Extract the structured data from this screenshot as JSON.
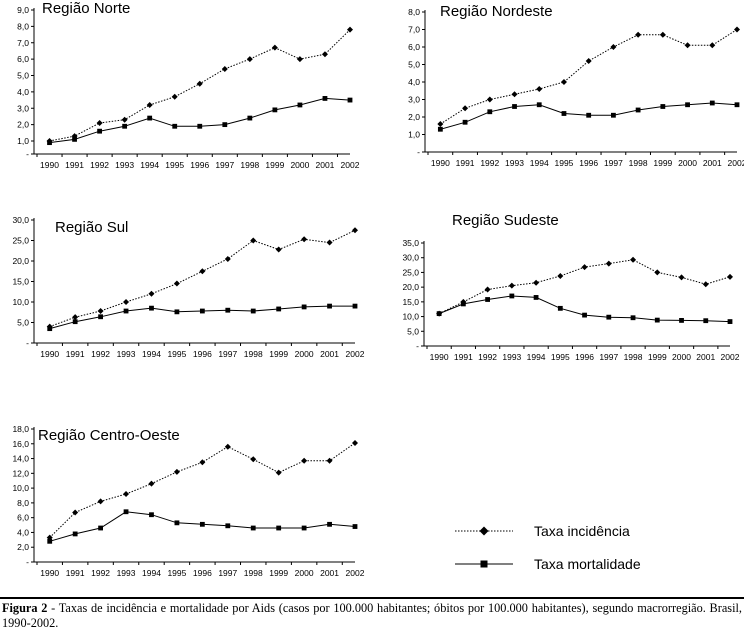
{
  "caption": {
    "label": "Figura 2",
    "text": " - Taxas de incidência e mortalidade por Aids (casos por 100.000 habitantes; óbitos por 100.000 habitantes), segundo macrorregião. Brasil, 1990-2002."
  },
  "legend": {
    "incidence": "Taxa incidência",
    "mortality": "Taxa mortalidade"
  },
  "chart_data": [
    {
      "type": "line",
      "title": "Região Norte",
      "x": [
        "1990",
        "1991",
        "1992",
        "1993",
        "1994",
        "1995",
        "1996",
        "1997",
        "1998",
        "1999",
        "2000",
        "2001",
        "2002"
      ],
      "ylim": [
        1.0,
        9.0
      ],
      "yticks": [
        "1,0",
        "2,0",
        "3,0",
        "4,0",
        "5,0",
        "6,0",
        "7,0",
        "8,0",
        "9,0"
      ],
      "ytick_values": [
        1,
        2,
        3,
        4,
        5,
        6,
        7,
        8,
        9
      ],
      "show_dash": true,
      "series": [
        {
          "name": "Taxa incidência",
          "values": [
            1.0,
            1.3,
            2.1,
            2.3,
            3.2,
            3.7,
            4.5,
            5.4,
            6.0,
            6.7,
            6.0,
            6.3,
            7.8
          ]
        },
        {
          "name": "Taxa mortalidade",
          "values": [
            0.9,
            1.1,
            1.6,
            1.9,
            2.4,
            1.9,
            1.9,
            2.0,
            2.4,
            2.9,
            3.2,
            3.6,
            3.5
          ]
        }
      ]
    },
    {
      "type": "line",
      "title": "Região Nordeste",
      "x": [
        "1990",
        "1991",
        "1992",
        "1993",
        "1994",
        "1995",
        "1996",
        "1997",
        "1998",
        "1999",
        "2000",
        "2001",
        "2002"
      ],
      "ylim": [
        0,
        8.0
      ],
      "yticks": [
        "-",
        "1,0",
        "2,0",
        "3,0",
        "4,0",
        "5,0",
        "6,0",
        "7,0",
        "8,0"
      ],
      "ytick_values": [
        0,
        1,
        2,
        3,
        4,
        5,
        6,
        7,
        8
      ],
      "show_dash": false,
      "series": [
        {
          "name": "Taxa incidência",
          "values": [
            1.6,
            2.5,
            3.0,
            3.3,
            3.6,
            4.0,
            5.2,
            6.0,
            6.7,
            6.7,
            6.1,
            6.1,
            7.0
          ]
        },
        {
          "name": "Taxa mortalidade",
          "values": [
            1.3,
            1.7,
            2.3,
            2.6,
            2.7,
            2.2,
            2.1,
            2.1,
            2.4,
            2.6,
            2.7,
            2.8,
            2.7
          ]
        }
      ]
    },
    {
      "type": "line",
      "title": "Região Sul",
      "x": [
        "1990",
        "1991",
        "1992",
        "1993",
        "1994",
        "1995",
        "1996",
        "1997",
        "1998",
        "1999",
        "2000",
        "2001",
        "2002"
      ],
      "ylim": [
        0,
        30.0
      ],
      "yticks": [
        "-",
        "5,0",
        "10,0",
        "15,0",
        "20,0",
        "25,0",
        "30,0"
      ],
      "ytick_values": [
        0,
        5,
        10,
        15,
        20,
        25,
        30
      ],
      "show_dash": false,
      "series": [
        {
          "name": "Taxa incidência",
          "values": [
            4.0,
            6.3,
            7.8,
            10.0,
            12.0,
            14.5,
            17.5,
            20.5,
            25.0,
            22.8,
            25.3,
            24.5,
            27.5
          ]
        },
        {
          "name": "Taxa mortalidade",
          "values": [
            3.5,
            5.2,
            6.4,
            7.8,
            8.5,
            7.6,
            7.8,
            8.0,
            7.8,
            8.3,
            8.8,
            9.0,
            9.0
          ]
        }
      ]
    },
    {
      "type": "line",
      "title": "Região Sudeste",
      "x": [
        "1990",
        "1991",
        "1992",
        "1993",
        "1994",
        "1995",
        "1996",
        "1997",
        "1998",
        "1999",
        "2000",
        "2001",
        "2002"
      ],
      "ylim": [
        0,
        35.0
      ],
      "yticks": [
        "-",
        "5,0",
        "10,0",
        "15,0",
        "20,0",
        "25,0",
        "30,0",
        "35,0"
      ],
      "ytick_values": [
        0,
        5,
        10,
        15,
        20,
        25,
        30,
        35
      ],
      "show_dash": false,
      "series": [
        {
          "name": "Taxa incidência",
          "values": [
            11.0,
            15.0,
            19.2,
            20.5,
            21.5,
            23.8,
            26.8,
            28.0,
            29.3,
            25.0,
            23.3,
            21.0,
            23.5
          ]
        },
        {
          "name": "Taxa mortalidade",
          "values": [
            11.0,
            14.3,
            15.8,
            17.0,
            16.5,
            12.8,
            10.5,
            9.8,
            9.6,
            8.8,
            8.7,
            8.6,
            8.3
          ]
        }
      ]
    },
    {
      "type": "line",
      "title": "Região Centro-Oeste",
      "x": [
        "1990",
        "1991",
        "1992",
        "1993",
        "1994",
        "1995",
        "1996",
        "1997",
        "1998",
        "1999",
        "2000",
        "2001",
        "2002"
      ],
      "ylim": [
        0,
        18.0
      ],
      "yticks": [
        "-",
        "2,0",
        "4,0",
        "6,0",
        "8,0",
        "10,0",
        "12,0",
        "14,0",
        "16,0",
        "18,0"
      ],
      "ytick_values": [
        0,
        2,
        4,
        6,
        8,
        10,
        12,
        14,
        16,
        18
      ],
      "show_dash": false,
      "series": [
        {
          "name": "Taxa incidência",
          "values": [
            3.3,
            6.7,
            8.2,
            9.2,
            10.6,
            12.2,
            13.5,
            15.6,
            13.9,
            12.1,
            13.7,
            13.7,
            16.1
          ]
        },
        {
          "name": "Taxa mortalidade",
          "values": [
            2.8,
            3.8,
            4.6,
            6.8,
            6.4,
            5.3,
            5.1,
            4.9,
            4.6,
            4.6,
            4.6,
            5.1,
            4.8
          ]
        }
      ]
    }
  ]
}
